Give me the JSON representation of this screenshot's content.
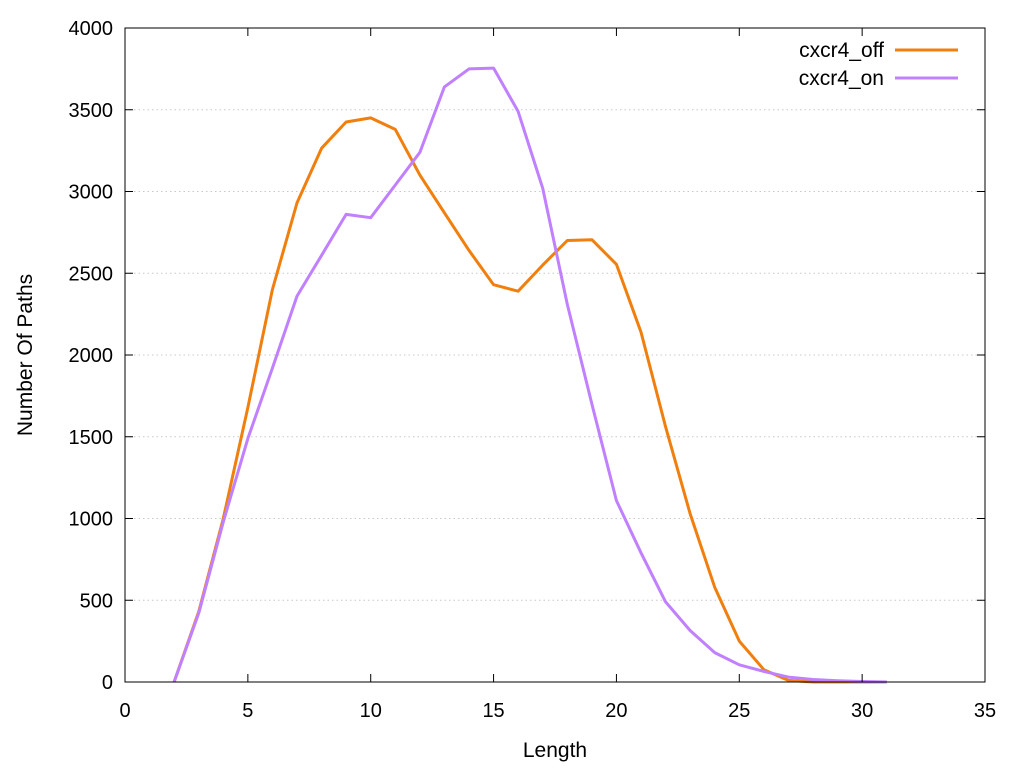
{
  "chart_data": {
    "type": "line",
    "title": "",
    "xlabel": "Length",
    "ylabel": "Number Of Paths",
    "xlim": [
      0,
      35
    ],
    "ylim": [
      0,
      4000
    ],
    "xticks": [
      0,
      5,
      10,
      15,
      20,
      25,
      30,
      35
    ],
    "yticks": [
      0,
      500,
      1000,
      1500,
      2000,
      2500,
      3000,
      3500,
      4000
    ],
    "grid": "horizontal dotted",
    "legend_position": "top-right",
    "series": [
      {
        "name": "cxcr4_off",
        "color": "#f07f0e",
        "x": [
          2,
          3,
          4,
          5,
          6,
          7,
          8,
          9,
          10,
          11,
          12,
          13,
          14,
          15,
          16,
          17,
          18,
          19,
          20,
          21,
          22,
          23,
          24,
          25,
          26,
          27,
          28,
          29,
          30,
          31
        ],
        "y": [
          0,
          430,
          1000,
          1680,
          2400,
          2930,
          3265,
          3425,
          3450,
          3380,
          3100,
          2870,
          2640,
          2430,
          2390,
          2550,
          2700,
          2705,
          2555,
          2140,
          1560,
          1030,
          580,
          250,
          75,
          10,
          0,
          0,
          0,
          0
        ]
      },
      {
        "name": "cxcr4_on",
        "color": "#c080ff",
        "x": [
          2,
          3,
          4,
          5,
          6,
          7,
          8,
          9,
          10,
          11,
          12,
          13,
          14,
          15,
          16,
          17,
          18,
          19,
          20,
          21,
          22,
          23,
          24,
          25,
          26,
          27,
          28,
          29,
          30,
          31
        ],
        "y": [
          0,
          420,
          980,
          1490,
          1920,
          2360,
          2610,
          2860,
          2840,
          3040,
          3240,
          3640,
          3750,
          3755,
          3490,
          3020,
          2310,
          1700,
          1110,
          790,
          490,
          315,
          180,
          105,
          65,
          30,
          15,
          8,
          3,
          0
        ]
      }
    ]
  }
}
